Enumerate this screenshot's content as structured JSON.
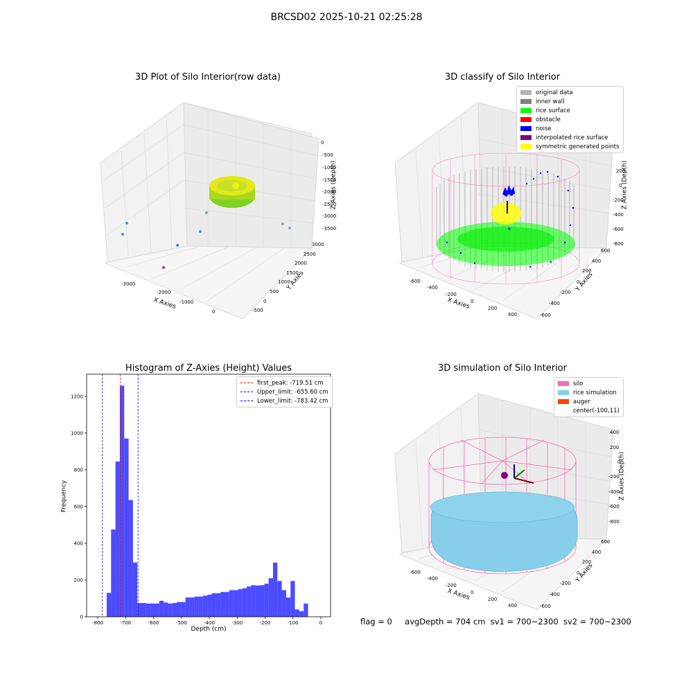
{
  "suptitle": "BRCSD02 2025-10-21 02:25:28",
  "raw_plot": {
    "title": "3D Plot of Silo Interior(row data)",
    "xlabel": "X Axies",
    "ylabel": "Y Axies",
    "zlabel": "Z Axies (Depth)",
    "xticks": [
      "-3000",
      "-2000",
      "-1000",
      "0"
    ],
    "yticks": [
      "-500",
      "0",
      "500",
      "1000",
      "1500",
      "2000",
      "2500",
      "3000"
    ],
    "zticks": [
      "0",
      "-500",
      "-1000",
      "-1500",
      "-2000",
      "-2500",
      "-3000",
      "-3500"
    ]
  },
  "classify_plot": {
    "title": "3D classify of Silo Interior",
    "xlabel": "X Axies",
    "ylabel": "Y Axies",
    "zlabel": "Z Axies (Depth)",
    "xticks": [
      "-600",
      "-400",
      "-200",
      "0",
      "200",
      "400"
    ],
    "yticks": [
      "-600",
      "-400",
      "-200",
      "0",
      "200",
      "400",
      "600"
    ],
    "zticks": [
      "200",
      "0",
      "-200",
      "-400",
      "-600",
      "-800"
    ],
    "legend": [
      {
        "label": "original data",
        "color": "#b4b4b4"
      },
      {
        "label": "inner wall",
        "color": "#808080"
      },
      {
        "label": "rice surface",
        "color": "#00ff00"
      },
      {
        "label": "obstacle",
        "color": "#ff0000"
      },
      {
        "label": "noise",
        "color": "#0000ff"
      },
      {
        "label": "interpolated rice surface",
        "color": "#800080"
      },
      {
        "label": "symmetric generated points",
        "color": "#ffff00"
      }
    ]
  },
  "sim_plot": {
    "title": "3D simulation of Silo Interior",
    "xlabel": "X Axies",
    "ylabel": "Y Axies",
    "zlabel": "Z Axies (Depth)",
    "xticks": [
      "-600",
      "-400",
      "-200",
      "0",
      "200",
      "400"
    ],
    "yticks": [
      "-600",
      "-400",
      "-200",
      "0",
      "200",
      "400",
      "600"
    ],
    "zticks": [
      "400",
      "200",
      "0",
      "-200",
      "-400",
      "-600",
      "-800"
    ],
    "legend": [
      {
        "label": "silo",
        "color": "#ff69b4"
      },
      {
        "label": "rice simulation",
        "color": "#87ceeb"
      },
      {
        "label": "auger",
        "color": "#ff4500"
      },
      {
        "label": "center(-100,11)",
        "color": ""
      }
    ]
  },
  "footer": {
    "flag": "flag = 0",
    "avg": "avgDepth = 704 cm",
    "sv1": "sv1 = 700~2300",
    "sv2": "sv2 = 700~2300"
  },
  "chart_data": {
    "type": "bar",
    "title": "Histogram of Z-Axies (Height) Values",
    "xlabel": "Depth (cm)",
    "ylabel": "Frequency",
    "xlim": [
      -840,
      35
    ],
    "ylim": [
      0,
      1320
    ],
    "xticks": [
      -800,
      -700,
      -600,
      -500,
      -400,
      -300,
      -200,
      -100,
      0
    ],
    "yticks": [
      0,
      200,
      400,
      600,
      800,
      1000,
      1200
    ],
    "bar_color": "#0000ff",
    "bar_opacity": 0.7,
    "bin_width": 15.7,
    "bin_start": -768,
    "values": [
      130,
      475,
      845,
      1258,
      970,
      635,
      295,
      75,
      75,
      72,
      72,
      72,
      87,
      78,
      72,
      75,
      80,
      80,
      105,
      105,
      110,
      110,
      115,
      120,
      128,
      128,
      135,
      135,
      145,
      145,
      150,
      155,
      165,
      172,
      170,
      172,
      180,
      210,
      295,
      195,
      145,
      105,
      195,
      40,
      30,
      72
    ],
    "vlines": [
      {
        "label": "first_peak: -719.51 cm",
        "x": -719.51,
        "color": "#ff0000"
      },
      {
        "label": "Upper_limit: -655.60 cm",
        "x": -655.6,
        "color": "#0000ff"
      },
      {
        "label": "Lower_limit: -783.42 cm",
        "x": -783.42,
        "color": "#0000ff"
      }
    ],
    "legend_position": "upper right"
  }
}
